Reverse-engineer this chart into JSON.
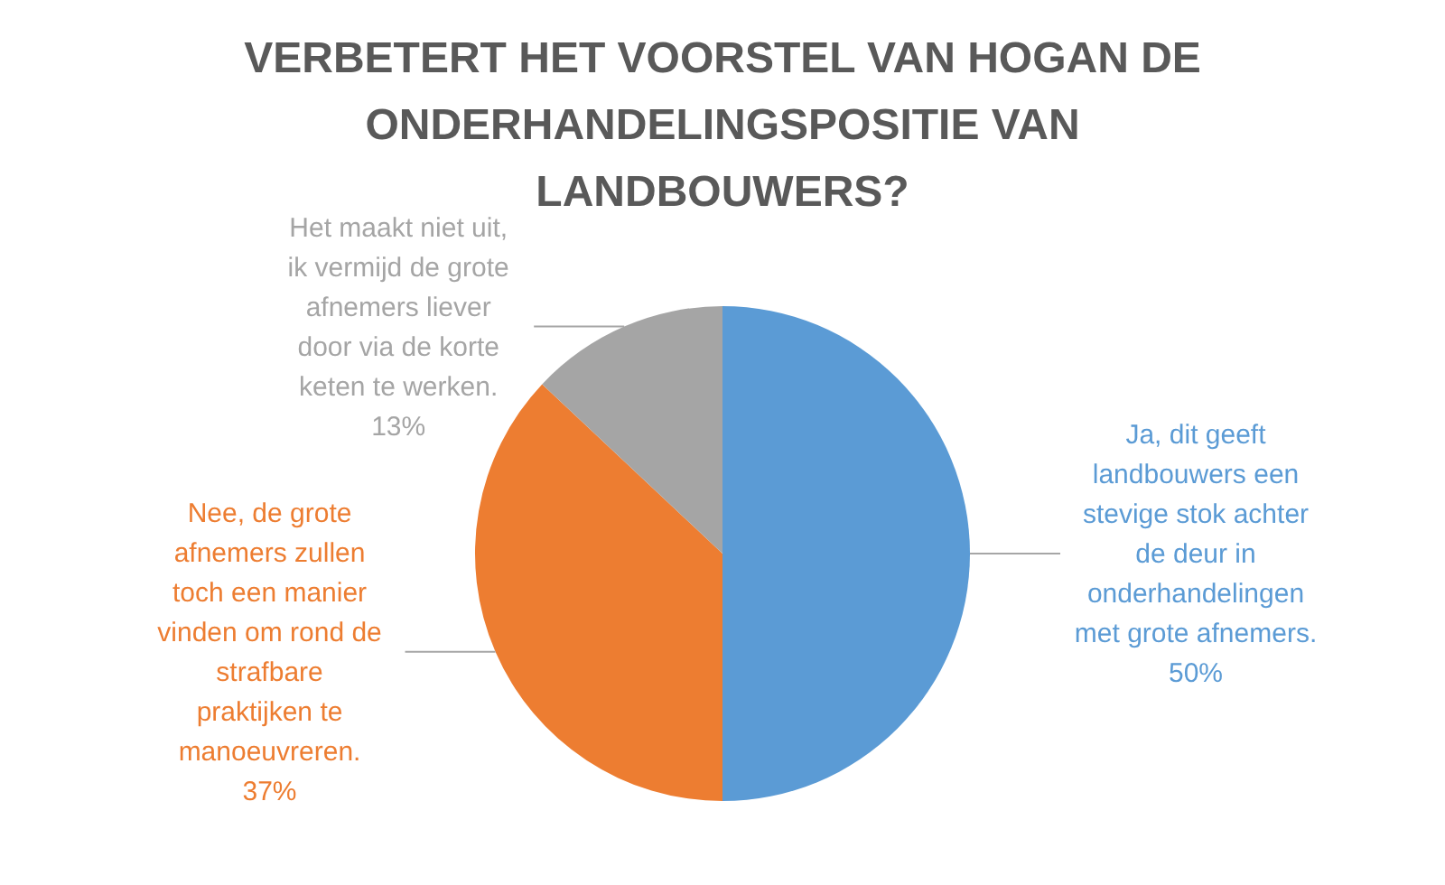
{
  "chart_data": {
    "type": "pie",
    "title": "VERBETERT HET VOORSTEL VAN HOGAN DE ONDERHANDELINGSPOSITIE VAN LANDBOUWERS?",
    "categories": [
      "Ja, dit geeft landbouwers een stevige stok achter de deur in onderhandelingen met grote afnemers.",
      "Nee, de grote afnemers zullen toch een manier vinden om rond de strafbare praktijken te manoeuvreren.",
      "Het maakt niet uit, ik vermijd de grote afnemers liever door via de korte keten te werken."
    ],
    "values": [
      50,
      37,
      13
    ],
    "colors": [
      "#5b9bd5",
      "#ed7d31",
      "#a5a5a5"
    ],
    "value_labels": [
      "50%",
      "37%",
      "13%"
    ]
  }
}
